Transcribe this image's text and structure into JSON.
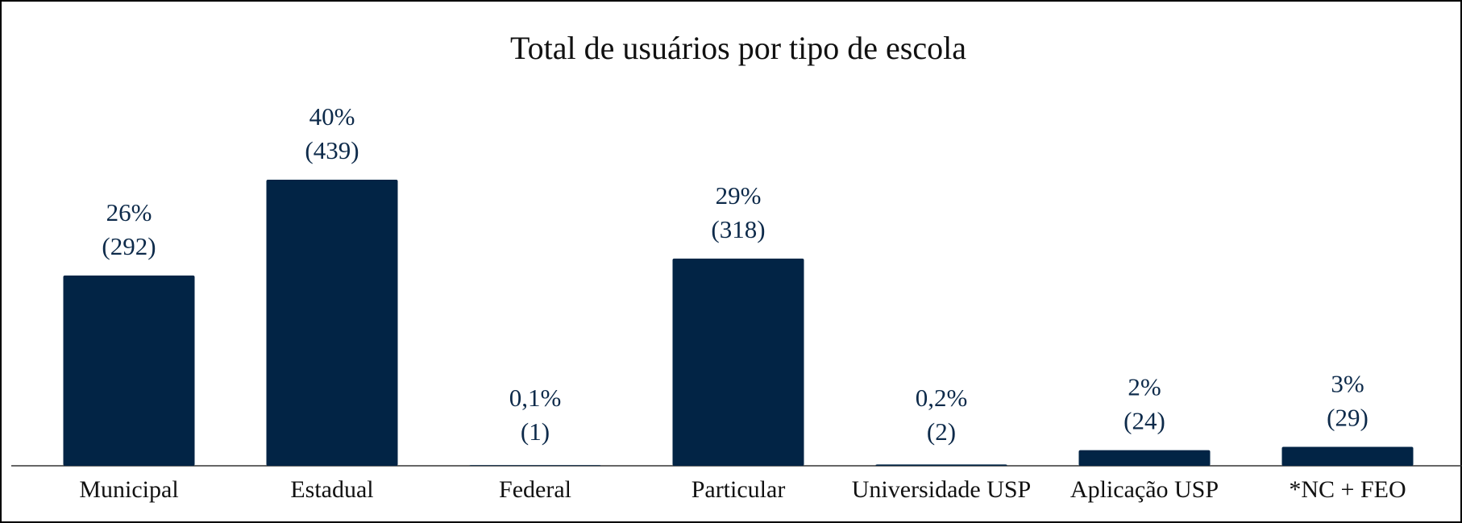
{
  "chart_data": {
    "type": "bar",
    "title": "Total de usuários por tipo de escola",
    "categories": [
      "Municipal",
      "Estadual",
      "Federal",
      "Particular",
      "Universidade USP",
      "Aplicação USP",
      "*NC + FEO"
    ],
    "values": [
      292,
      439,
      1,
      318,
      2,
      24,
      29
    ],
    "value_labels": [
      "(292)",
      "(439)",
      "(1)",
      "(318)",
      "(2)",
      "(24)",
      "(29)"
    ],
    "percentages": [
      26,
      40,
      0.1,
      29,
      0.2,
      2,
      3
    ],
    "percentage_labels": [
      "26%",
      "40%",
      "0,1%",
      "29%",
      "0,2%",
      "2%",
      "3%"
    ],
    "color": "#022445"
  }
}
